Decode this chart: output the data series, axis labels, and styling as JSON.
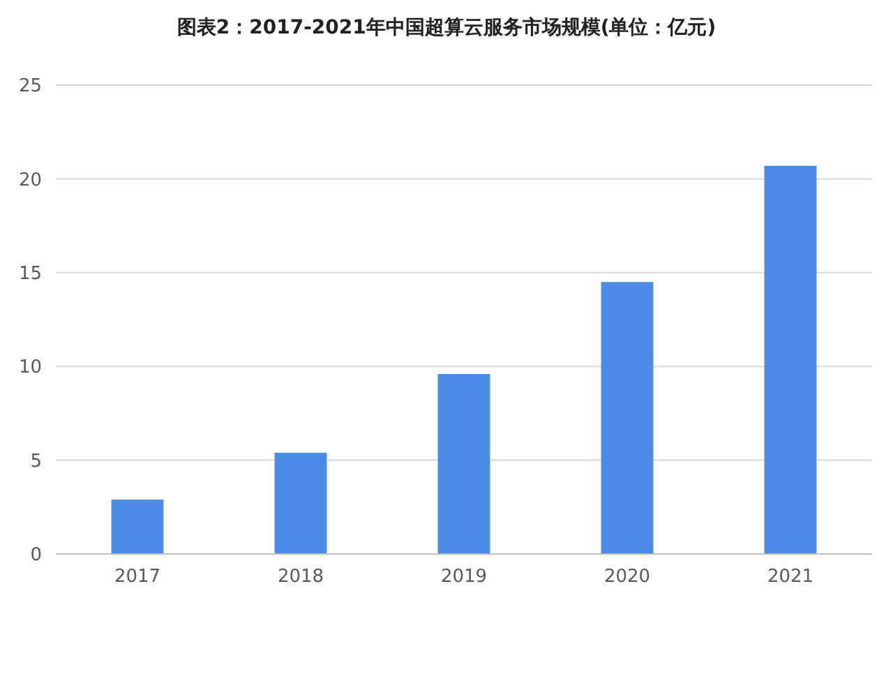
{
  "chart_data": {
    "type": "bar",
    "title": "图表2：2017-2021年中国超算云服务市场规模(单位：亿元)",
    "categories": [
      "2017",
      "2018",
      "2019",
      "2020",
      "2021"
    ],
    "values": [
      2.9,
      5.4,
      9.6,
      14.5,
      20.7
    ],
    "color": "#4a8be6",
    "ylim": [
      0,
      25
    ],
    "yticks": [
      0,
      5,
      10,
      15,
      20,
      25
    ],
    "grid": "y"
  }
}
